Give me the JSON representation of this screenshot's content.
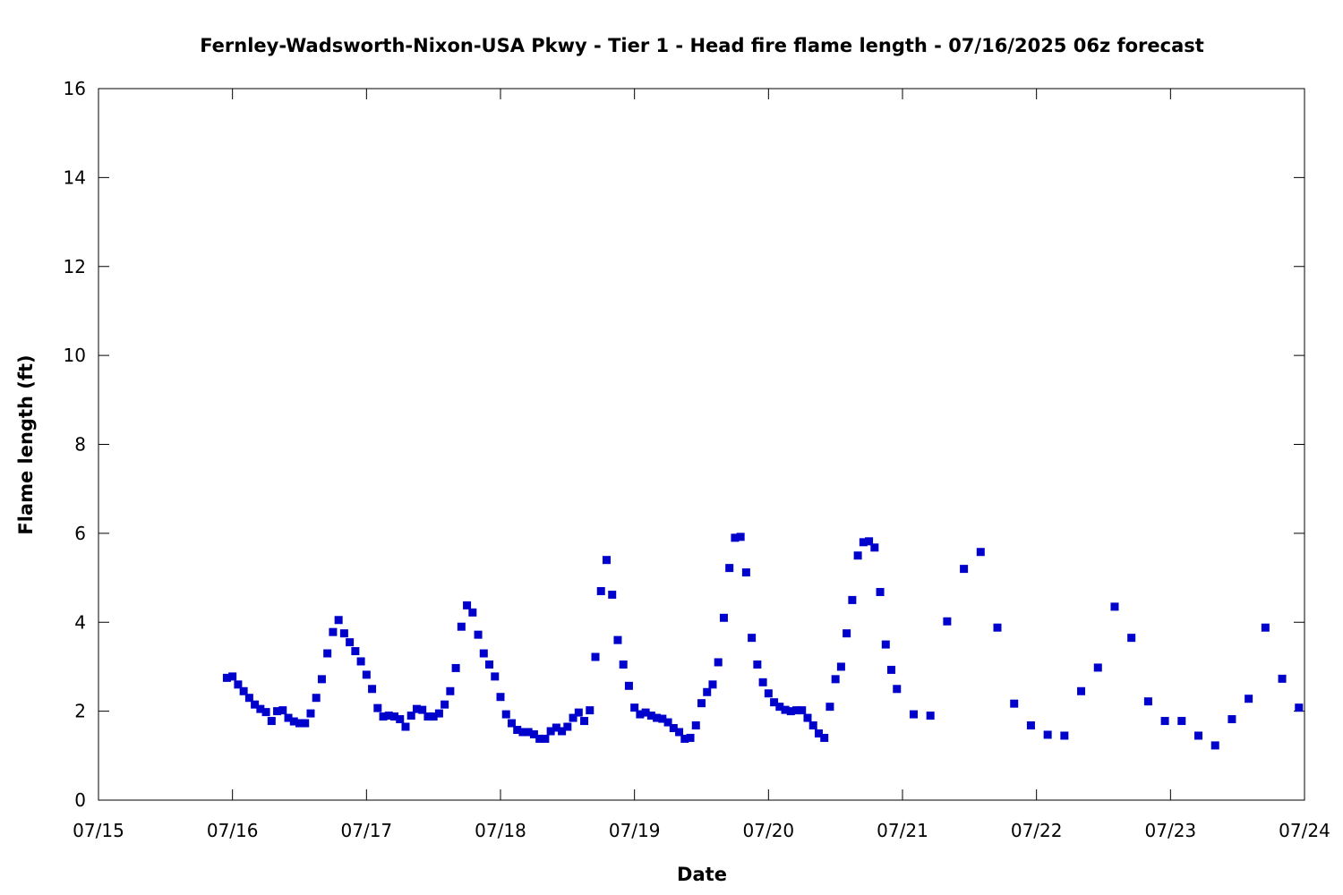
{
  "chart_data": {
    "type": "scatter",
    "title": "Fernley-Wadsworth-Nixon-USA Pkwy - Tier 1 - Head fire flame length - 07/16/2025 06z forecast",
    "xlabel": "Date",
    "ylabel": "Flame length (ft)",
    "xlim": [
      "2025-07-15T00:00",
      "2025-07-24T00:00"
    ],
    "ylim": [
      0,
      16
    ],
    "x_ticks": [
      "07/15",
      "07/16",
      "07/17",
      "07/18",
      "07/19",
      "07/20",
      "07/21",
      "07/22",
      "07/23",
      "07/24"
    ],
    "y_ticks": [
      "0",
      "2",
      "4",
      "6",
      "8",
      "10",
      "12",
      "14",
      "16"
    ],
    "grid": false,
    "marker": "square",
    "colors": {
      "points": "#0000cc",
      "axis": "#000000"
    },
    "series": [
      {
        "points": [
          [
            "2025-07-15T23:00",
            2.75
          ],
          [
            "2025-07-16T00:00",
            2.78
          ],
          [
            "2025-07-16T01:00",
            2.6
          ],
          [
            "2025-07-16T02:00",
            2.45
          ],
          [
            "2025-07-16T03:00",
            2.3
          ],
          [
            "2025-07-16T04:00",
            2.15
          ],
          [
            "2025-07-16T05:00",
            2.05
          ],
          [
            "2025-07-16T06:00",
            1.98
          ],
          [
            "2025-07-16T07:00",
            1.78
          ],
          [
            "2025-07-16T08:00",
            2.0
          ],
          [
            "2025-07-16T09:00",
            2.02
          ],
          [
            "2025-07-16T10:00",
            1.85
          ],
          [
            "2025-07-16T11:00",
            1.77
          ],
          [
            "2025-07-16T12:00",
            1.73
          ],
          [
            "2025-07-16T13:00",
            1.73
          ],
          [
            "2025-07-16T14:00",
            1.95
          ],
          [
            "2025-07-16T15:00",
            2.3
          ],
          [
            "2025-07-16T16:00",
            2.72
          ],
          [
            "2025-07-16T17:00",
            3.3
          ],
          [
            "2025-07-16T18:00",
            3.78
          ],
          [
            "2025-07-16T19:00",
            4.05
          ],
          [
            "2025-07-16T20:00",
            3.75
          ],
          [
            "2025-07-16T21:00",
            3.55
          ],
          [
            "2025-07-16T22:00",
            3.35
          ],
          [
            "2025-07-16T23:00",
            3.12
          ],
          [
            "2025-07-17T00:00",
            2.82
          ],
          [
            "2025-07-17T01:00",
            2.5
          ],
          [
            "2025-07-17T02:00",
            2.07
          ],
          [
            "2025-07-17T03:00",
            1.88
          ],
          [
            "2025-07-17T04:00",
            1.9
          ],
          [
            "2025-07-17T05:00",
            1.88
          ],
          [
            "2025-07-17T06:00",
            1.82
          ],
          [
            "2025-07-17T07:00",
            1.65
          ],
          [
            "2025-07-17T08:00",
            1.9
          ],
          [
            "2025-07-17T09:00",
            2.05
          ],
          [
            "2025-07-17T10:00",
            2.03
          ],
          [
            "2025-07-17T11:00",
            1.88
          ],
          [
            "2025-07-17T12:00",
            1.88
          ],
          [
            "2025-07-17T13:00",
            1.95
          ],
          [
            "2025-07-17T14:00",
            2.15
          ],
          [
            "2025-07-17T15:00",
            2.45
          ],
          [
            "2025-07-17T16:00",
            2.97
          ],
          [
            "2025-07-17T17:00",
            3.9
          ],
          [
            "2025-07-17T18:00",
            4.38
          ],
          [
            "2025-07-17T19:00",
            4.22
          ],
          [
            "2025-07-17T20:00",
            3.72
          ],
          [
            "2025-07-17T21:00",
            3.3
          ],
          [
            "2025-07-17T22:00",
            3.05
          ],
          [
            "2025-07-17T23:00",
            2.78
          ],
          [
            "2025-07-18T00:00",
            2.32
          ],
          [
            "2025-07-18T01:00",
            1.93
          ],
          [
            "2025-07-18T02:00",
            1.73
          ],
          [
            "2025-07-18T03:00",
            1.58
          ],
          [
            "2025-07-18T04:00",
            1.53
          ],
          [
            "2025-07-18T05:00",
            1.53
          ],
          [
            "2025-07-18T06:00",
            1.48
          ],
          [
            "2025-07-18T07:00",
            1.38
          ],
          [
            "2025-07-18T08:00",
            1.38
          ],
          [
            "2025-07-18T09:00",
            1.55
          ],
          [
            "2025-07-18T10:00",
            1.63
          ],
          [
            "2025-07-18T11:00",
            1.55
          ],
          [
            "2025-07-18T12:00",
            1.65
          ],
          [
            "2025-07-18T13:00",
            1.85
          ],
          [
            "2025-07-18T14:00",
            1.97
          ],
          [
            "2025-07-18T15:00",
            1.78
          ],
          [
            "2025-07-18T16:00",
            2.02
          ],
          [
            "2025-07-18T17:00",
            3.22
          ],
          [
            "2025-07-18T18:00",
            4.7
          ],
          [
            "2025-07-18T19:00",
            5.4
          ],
          [
            "2025-07-18T20:00",
            4.62
          ],
          [
            "2025-07-18T21:00",
            3.6
          ],
          [
            "2025-07-18T22:00",
            3.05
          ],
          [
            "2025-07-18T23:00",
            2.57
          ],
          [
            "2025-07-19T00:00",
            2.08
          ],
          [
            "2025-07-19T01:00",
            1.93
          ],
          [
            "2025-07-19T02:00",
            1.97
          ],
          [
            "2025-07-19T03:00",
            1.9
          ],
          [
            "2025-07-19T04:00",
            1.85
          ],
          [
            "2025-07-19T05:00",
            1.83
          ],
          [
            "2025-07-19T06:00",
            1.75
          ],
          [
            "2025-07-19T07:00",
            1.62
          ],
          [
            "2025-07-19T08:00",
            1.53
          ],
          [
            "2025-07-19T09:00",
            1.38
          ],
          [
            "2025-07-19T10:00",
            1.4
          ],
          [
            "2025-07-19T11:00",
            1.68
          ],
          [
            "2025-07-19T12:00",
            2.18
          ],
          [
            "2025-07-19T13:00",
            2.43
          ],
          [
            "2025-07-19T14:00",
            2.6
          ],
          [
            "2025-07-19T15:00",
            3.1
          ],
          [
            "2025-07-19T16:00",
            4.1
          ],
          [
            "2025-07-19T17:00",
            5.22
          ],
          [
            "2025-07-19T18:00",
            5.9
          ],
          [
            "2025-07-19T19:00",
            5.92
          ],
          [
            "2025-07-19T20:00",
            5.12
          ],
          [
            "2025-07-19T21:00",
            3.65
          ],
          [
            "2025-07-19T22:00",
            3.05
          ],
          [
            "2025-07-19T23:00",
            2.65
          ],
          [
            "2025-07-20T00:00",
            2.4
          ],
          [
            "2025-07-20T01:00",
            2.2
          ],
          [
            "2025-07-20T02:00",
            2.1
          ],
          [
            "2025-07-20T03:00",
            2.03
          ],
          [
            "2025-07-20T04:00",
            2.0
          ],
          [
            "2025-07-20T05:00",
            2.02
          ],
          [
            "2025-07-20T06:00",
            2.02
          ],
          [
            "2025-07-20T07:00",
            1.85
          ],
          [
            "2025-07-20T08:00",
            1.68
          ],
          [
            "2025-07-20T09:00",
            1.5
          ],
          [
            "2025-07-20T10:00",
            1.4
          ],
          [
            "2025-07-20T11:00",
            2.1
          ],
          [
            "2025-07-20T12:00",
            2.72
          ],
          [
            "2025-07-20T13:00",
            3.0
          ],
          [
            "2025-07-20T14:00",
            3.75
          ],
          [
            "2025-07-20T15:00",
            4.5
          ],
          [
            "2025-07-20T16:00",
            5.5
          ],
          [
            "2025-07-20T17:00",
            5.8
          ],
          [
            "2025-07-20T18:00",
            5.82
          ],
          [
            "2025-07-20T19:00",
            5.68
          ],
          [
            "2025-07-20T20:00",
            4.68
          ],
          [
            "2025-07-20T21:00",
            3.5
          ],
          [
            "2025-07-20T22:00",
            2.93
          ],
          [
            "2025-07-20T23:00",
            2.5
          ],
          [
            "2025-07-21T02:00",
            1.93
          ],
          [
            "2025-07-21T05:00",
            1.9
          ],
          [
            "2025-07-21T08:00",
            4.02
          ],
          [
            "2025-07-21T11:00",
            5.2
          ],
          [
            "2025-07-21T14:00",
            5.58
          ],
          [
            "2025-07-21T17:00",
            3.88
          ],
          [
            "2025-07-21T20:00",
            2.17
          ],
          [
            "2025-07-21T23:00",
            1.68
          ],
          [
            "2025-07-22T02:00",
            1.47
          ],
          [
            "2025-07-22T05:00",
            1.45
          ],
          [
            "2025-07-22T08:00",
            2.45
          ],
          [
            "2025-07-22T11:00",
            2.98
          ],
          [
            "2025-07-22T14:00",
            4.35
          ],
          [
            "2025-07-22T17:00",
            3.65
          ],
          [
            "2025-07-22T20:00",
            2.22
          ],
          [
            "2025-07-22T23:00",
            1.78
          ],
          [
            "2025-07-23T02:00",
            1.78
          ],
          [
            "2025-07-23T05:00",
            1.45
          ],
          [
            "2025-07-23T08:00",
            1.23
          ],
          [
            "2025-07-23T11:00",
            1.82
          ],
          [
            "2025-07-23T14:00",
            2.28
          ],
          [
            "2025-07-23T17:00",
            3.88
          ],
          [
            "2025-07-23T20:00",
            2.73
          ],
          [
            "2025-07-23T23:00",
            2.08
          ]
        ]
      }
    ]
  }
}
